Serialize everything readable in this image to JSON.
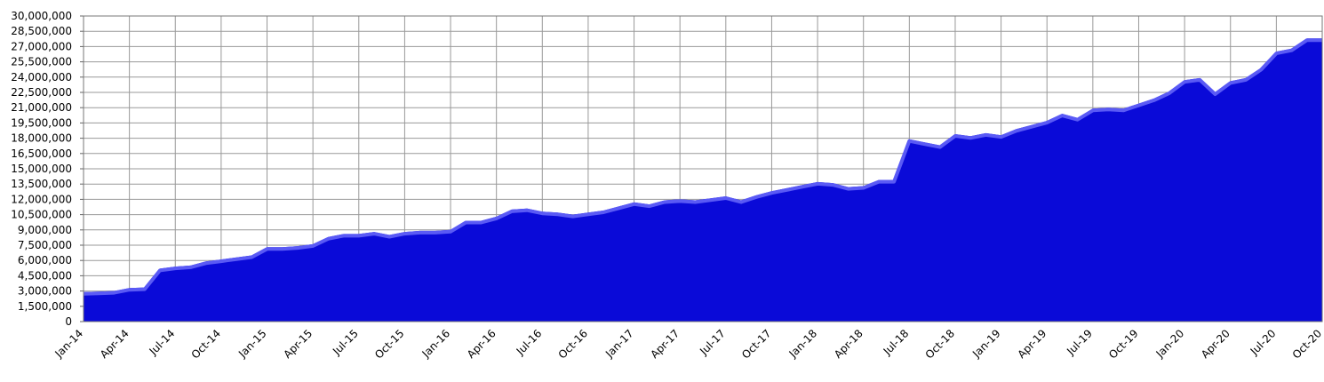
{
  "chart_data": {
    "type": "area",
    "categories": [
      "Jan-14",
      null,
      null,
      "Apr-14",
      null,
      null,
      "Jul-14",
      null,
      null,
      "Oct-14",
      null,
      null,
      "Jan-15",
      null,
      null,
      "Apr-15",
      null,
      null,
      "Jul-15",
      null,
      null,
      "Oct-15",
      null,
      null,
      "Jan-16",
      null,
      null,
      "Apr-16",
      null,
      null,
      "Jul-16",
      null,
      null,
      "Oct-16",
      null,
      null,
      "Jan-17",
      null,
      null,
      "Apr-17",
      null,
      null,
      "Jul-17",
      null,
      null,
      "Oct-17",
      null,
      null,
      "Jan-18",
      null,
      null,
      "Apr-18",
      null,
      null,
      "Jul-18",
      null,
      null,
      "Oct-18",
      null,
      null,
      "Jan-19",
      null,
      null,
      "Apr-19",
      null,
      null,
      "Jul-19",
      null,
      null,
      "Oct-19",
      null,
      null,
      "Jan-20",
      null,
      null,
      "Apr-20",
      null,
      null,
      "Jul-20",
      null,
      null,
      "Oct-20"
    ],
    "values": [
      2900000,
      2950000,
      3000000,
      3300000,
      3350000,
      5200000,
      5400000,
      5500000,
      5900000,
      6100000,
      6300000,
      6500000,
      7300000,
      7300000,
      7400000,
      7600000,
      8300000,
      8600000,
      8600000,
      8800000,
      8500000,
      8800000,
      8900000,
      8900000,
      9000000,
      9900000,
      9900000,
      10300000,
      11000000,
      11100000,
      10800000,
      10700000,
      10500000,
      10700000,
      10900000,
      11300000,
      11700000,
      11500000,
      11900000,
      12000000,
      11900000,
      12100000,
      12300000,
      11900000,
      12400000,
      12800000,
      13100000,
      13400000,
      13700000,
      13600000,
      13200000,
      13300000,
      13900000,
      13900000,
      17900000,
      17600000,
      17300000,
      18400000,
      18200000,
      18500000,
      18300000,
      18900000,
      19300000,
      19700000,
      20400000,
      20000000,
      20900000,
      21000000,
      20900000,
      21400000,
      21900000,
      22600000,
      23700000,
      23900000,
      22500000,
      23600000,
      23900000,
      24900000,
      26500000,
      26800000,
      27800000,
      27800000
    ],
    "color": "#0a0ad8",
    "ylim": [
      0,
      30000000
    ],
    "yticks": [
      0,
      {
        "value": 1500000,
        "label": "1,500,000"
      },
      {
        "value": 3000000,
        "label": "3,000,000"
      },
      {
        "value": 4500000,
        "label": "4,500,000"
      },
      {
        "value": 6000000,
        "label": "6,000,000"
      },
      {
        "value": 7500000,
        "label": "7,500,000"
      },
      {
        "value": 9000000,
        "label": "9,000,000"
      },
      {
        "value": 10500000,
        "label": "10,500,000"
      },
      {
        "value": 12000000,
        "label": "12,000,000"
      },
      {
        "value": 13500000,
        "label": "13,500,000"
      },
      {
        "value": 15000000,
        "label": "15,000,000"
      },
      {
        "value": 16500000,
        "label": "16,500,000"
      },
      {
        "value": 18000000,
        "label": "18,000,000"
      },
      {
        "value": 19500000,
        "label": "19,500,000"
      },
      {
        "value": 21000000,
        "label": "21,000,000"
      },
      {
        "value": 22500000,
        "label": "22,500,000"
      },
      {
        "value": 24000000,
        "label": "24,000,000"
      },
      {
        "value": 25500000,
        "label": "25,500,000"
      },
      {
        "value": 27000000,
        "label": "27,000,000"
      },
      {
        "value": 28500000,
        "label": "28,500,000"
      },
      {
        "value": 30000000,
        "label": "30,000,000"
      }
    ],
    "grid": true
  }
}
